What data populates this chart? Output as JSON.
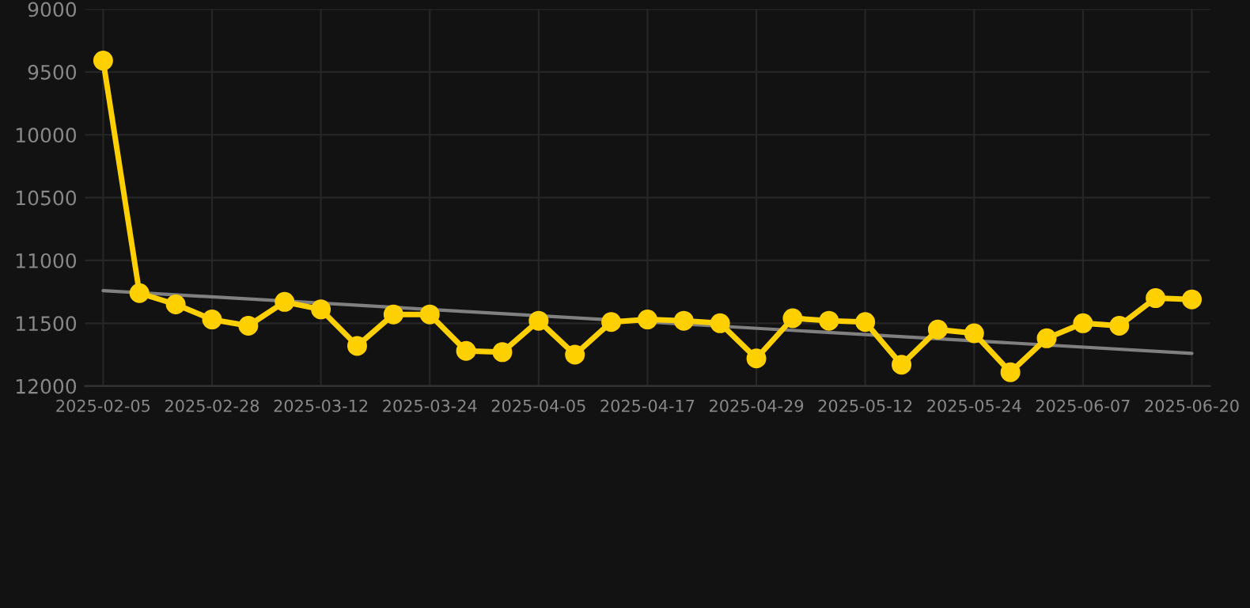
{
  "chart_data": {
    "type": "line",
    "categories": [
      "2025-02-05",
      null,
      null,
      "2025-02-28",
      null,
      null,
      "2025-03-12",
      null,
      null,
      "2025-03-24",
      null,
      null,
      "2025-04-05",
      null,
      null,
      "2025-04-17",
      null,
      null,
      "2025-04-29",
      null,
      null,
      "2025-05-12",
      null,
      null,
      "2025-05-24",
      null,
      null,
      "2025-06-07",
      null,
      null,
      "2025-06-20"
    ],
    "series": [
      {
        "color": "#ffd000",
        "marker": "circle",
        "values": [
          9410,
          11260,
          11350,
          11470,
          11520,
          11330,
          11390,
          11680,
          11430,
          11430,
          11720,
          11730,
          11480,
          11750,
          11490,
          11470,
          11480,
          11500,
          11780,
          11460,
          11480,
          11490,
          11830,
          11550,
          11580,
          11890,
          11620,
          11500,
          11520,
          11300,
          11310
        ]
      },
      {
        "type": "line",
        "color": "#808080",
        "marker": "none",
        "values": [
          11240,
          null,
          null,
          null,
          null,
          null,
          null,
          null,
          null,
          null,
          null,
          null,
          null,
          null,
          null,
          null,
          null,
          null,
          null,
          null,
          null,
          null,
          null,
          null,
          null,
          null,
          null,
          null,
          null,
          null,
          11740
        ]
      }
    ],
    "ylim": [
      12000,
      9000
    ],
    "yticks": [
      9000,
      9500,
      10000,
      10500,
      11000,
      11500,
      12000
    ],
    "grid": true,
    "legend": false
  }
}
